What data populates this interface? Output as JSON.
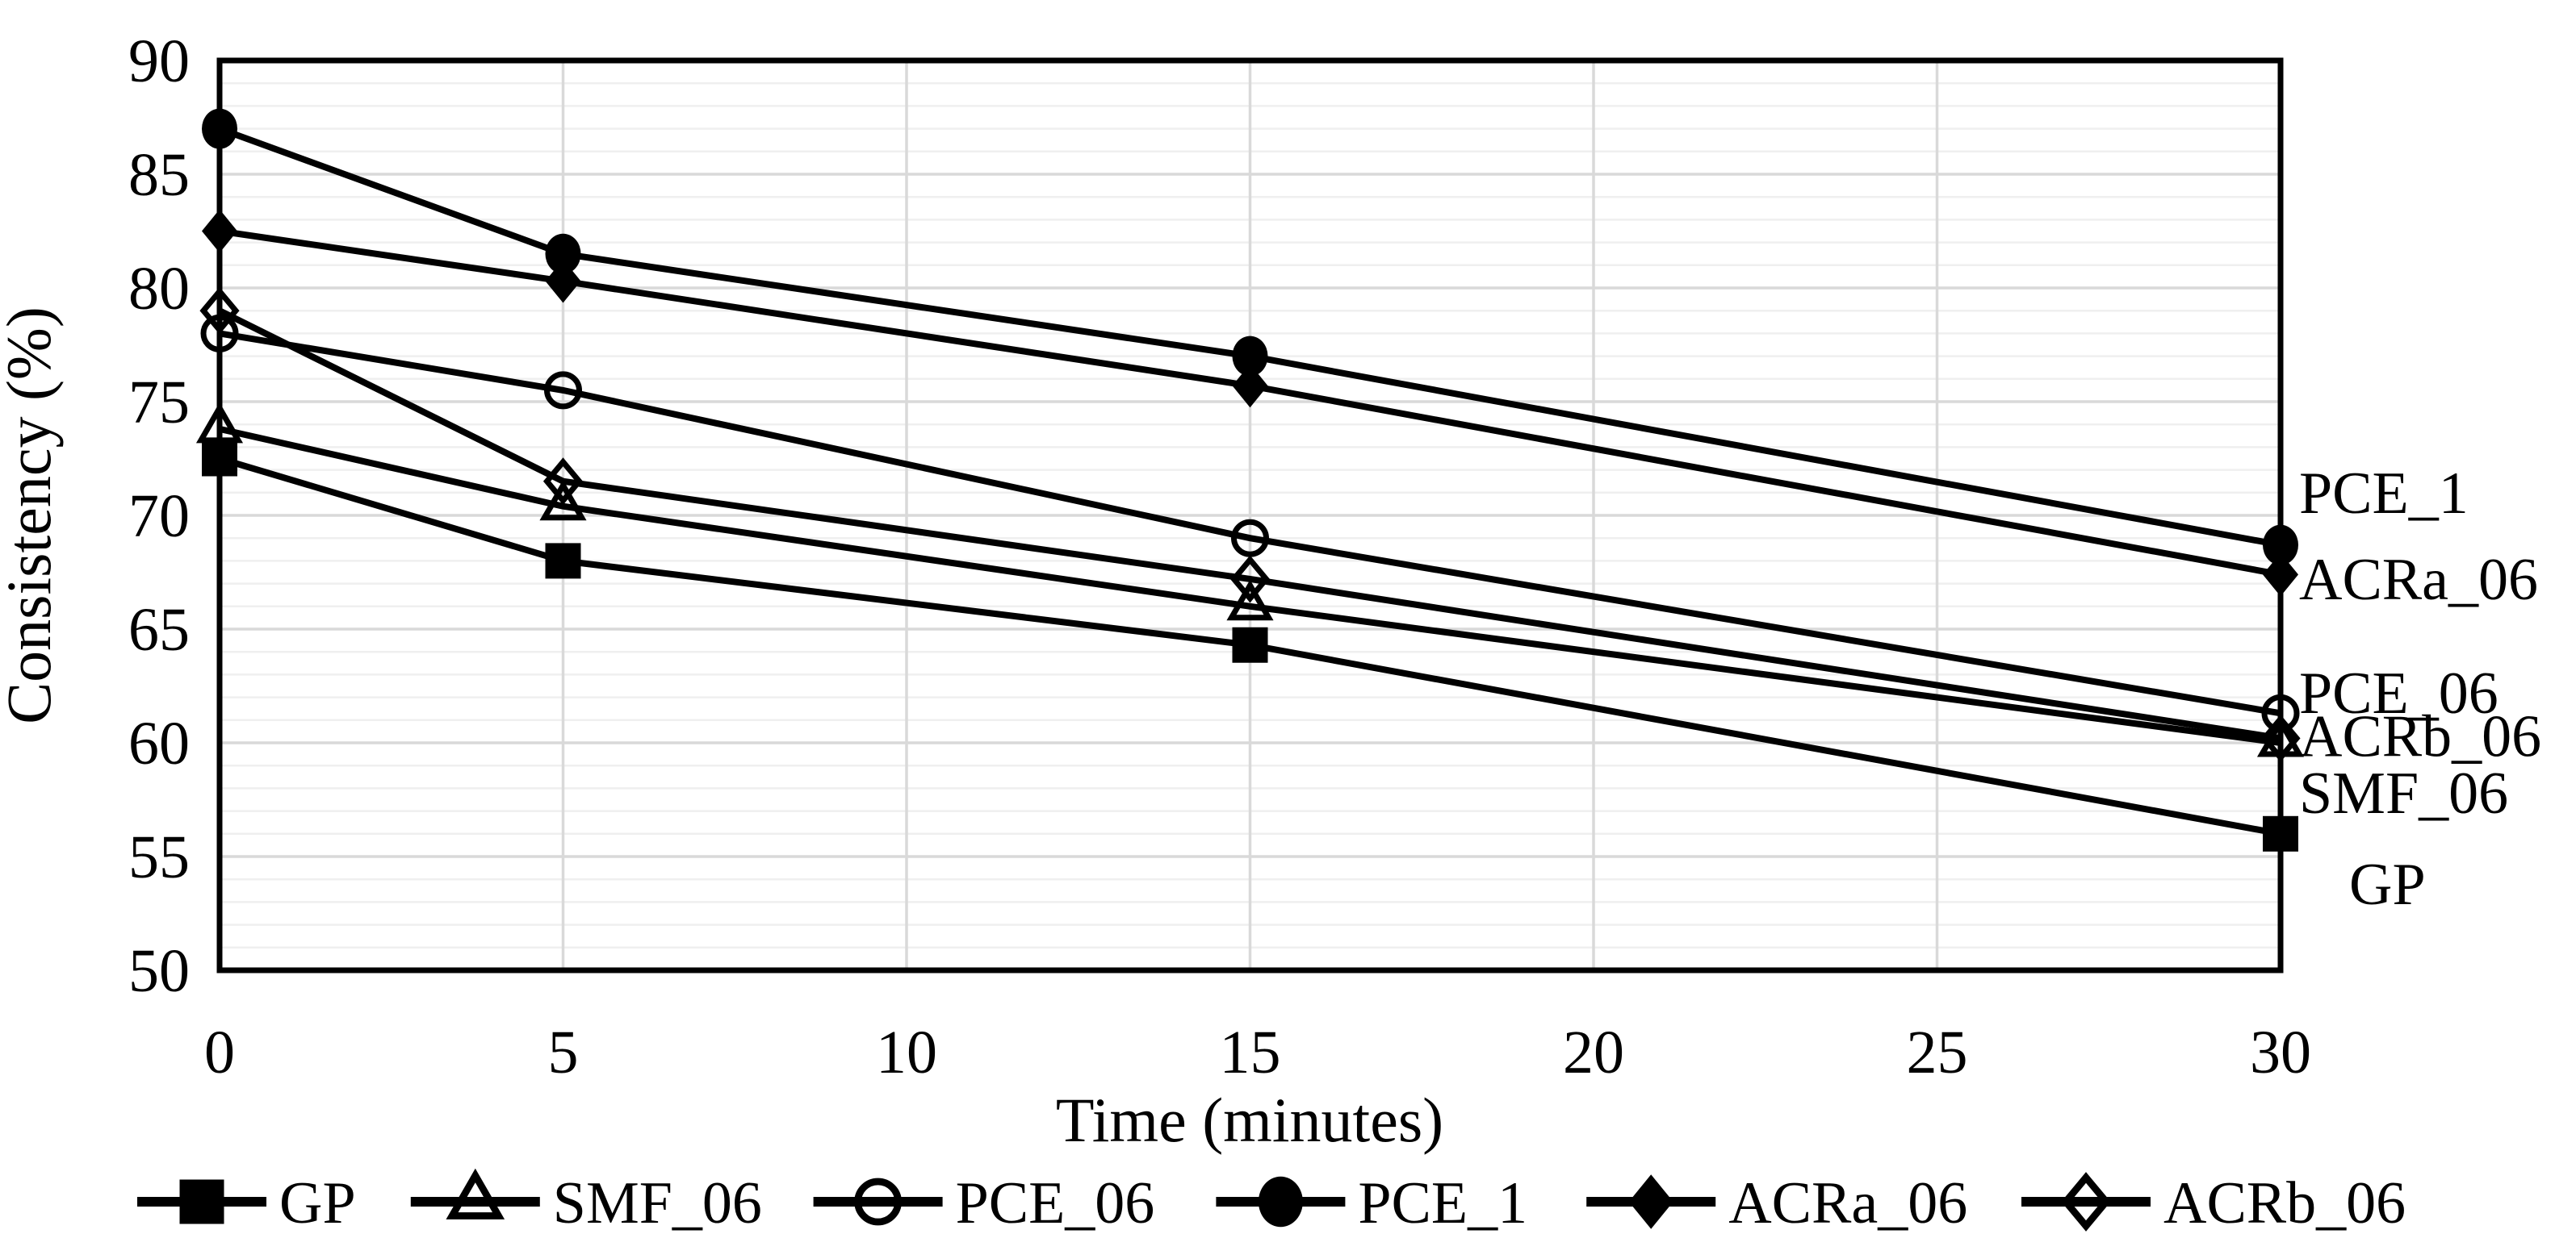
{
  "figure_title": "",
  "chart_data": {
    "type": "line",
    "title": "",
    "xlabel": "Time (minutes)",
    "ylabel": "Consistency (%)",
    "x": [
      0,
      5,
      15,
      30
    ],
    "xlim": [
      0,
      30
    ],
    "ylim": [
      50,
      90
    ],
    "xticks": [
      0,
      5,
      10,
      15,
      20,
      25,
      30
    ],
    "yticks": [
      50,
      55,
      60,
      65,
      70,
      75,
      80,
      85,
      90
    ],
    "grid": {
      "major": true,
      "minor_horizontal_step": 1,
      "major_color": "#d9d9d9",
      "minor_color": "#efefef"
    },
    "line_color": "#000000",
    "legend_position": "bottom",
    "series": [
      {
        "name": "GP",
        "marker": "filled-square",
        "values": [
          72.5,
          68.0,
          64.3,
          56.0
        ]
      },
      {
        "name": "SMF_06",
        "marker": "open-triangle",
        "values": [
          73.8,
          70.4,
          66.0,
          60.0
        ]
      },
      {
        "name": "PCE_06",
        "marker": "open-circle",
        "values": [
          78.0,
          75.5,
          69.0,
          61.3
        ]
      },
      {
        "name": "PCE_1",
        "marker": "filled-circle",
        "values": [
          87.0,
          81.5,
          77.0,
          68.7
        ]
      },
      {
        "name": "ACRa_06",
        "marker": "filled-diamond",
        "values": [
          82.5,
          80.3,
          75.7,
          67.4
        ]
      },
      {
        "name": "ACRb_06",
        "marker": "open-diamond",
        "values": [
          79.0,
          71.5,
          67.2,
          60.2
        ]
      }
    ],
    "right_labels": [
      {
        "text": "PCE_1",
        "v": 71.0,
        "dx": 0
      },
      {
        "text": "ACRa_06",
        "v": 67.2,
        "dx": 0
      },
      {
        "text": "PCE_06",
        "v": 62.2,
        "dx": 0
      },
      {
        "text": "ACRb_06",
        "v": 60.3,
        "dx": 0
      },
      {
        "text": "SMF_06",
        "v": 57.8,
        "dx": 0
      },
      {
        "text": "GP",
        "v": 53.8,
        "dx": 62
      }
    ],
    "legend": [
      "GP",
      "SMF_06",
      "PCE_06",
      "PCE_1",
      "ACRa_06",
      "ACRb_06"
    ]
  }
}
